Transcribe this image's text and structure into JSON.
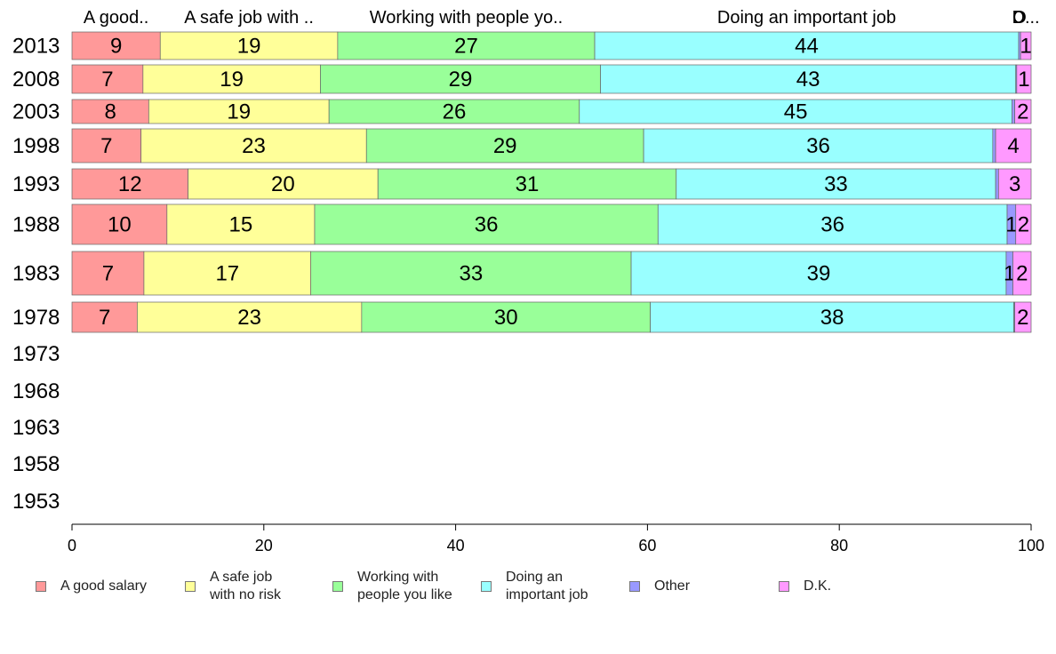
{
  "chart_data": {
    "type": "bar",
    "orientation": "horizontal",
    "stacked": true,
    "title": "",
    "xlabel": "",
    "ylabel": "",
    "xlim": [
      0,
      100
    ],
    "x_ticks": [
      "0",
      "20",
      "40",
      "60",
      "80",
      "100"
    ],
    "grid": false,
    "legend_position": "bottom",
    "top_labels": [
      "A good..",
      "A safe job with ..",
      "Working with people yo..",
      "Doing an important job",
      "O",
      "D..."
    ],
    "categories": [
      "2013",
      "2008",
      "2003",
      "1998",
      "1993",
      "1988",
      "1983",
      "1978",
      "1973",
      "1968",
      "1963",
      "1958",
      "1953"
    ],
    "series": [
      {
        "name": "A good salary",
        "legend_label": "A good salary",
        "color": "#ff9999",
        "values": [
          9.2,
          7.4,
          8,
          7.2,
          12.1,
          9.9,
          7.5,
          6.8,
          null,
          null,
          null,
          null,
          null
        ],
        "labels": [
          "9",
          "7",
          "8",
          "7",
          "12",
          "10",
          "7",
          "7",
          "",
          "",
          "",
          "",
          ""
        ]
      },
      {
        "name": "A safe job with no risk",
        "legend_label": "A safe job\nwith no risk",
        "color": "#ffff99",
        "values": [
          18.5,
          18.5,
          18.8,
          23.5,
          19.8,
          15.4,
          17.4,
          23.4,
          null,
          null,
          null,
          null,
          null
        ],
        "labels": [
          "19",
          "19",
          "19",
          "23",
          "20",
          "15",
          "17",
          "23",
          "",
          "",
          "",
          "",
          ""
        ]
      },
      {
        "name": "Working with people you like",
        "legend_label": "Working with\npeople you like",
        "color": "#99ff99",
        "values": [
          26.8,
          29.2,
          26.1,
          28.9,
          31.1,
          35.8,
          33.4,
          30.1,
          null,
          null,
          null,
          null,
          null
        ],
        "labels": [
          "27",
          "29",
          "26",
          "29",
          "31",
          "36",
          "33",
          "30",
          "",
          "",
          "",
          "",
          ""
        ]
      },
      {
        "name": "Doing an important job",
        "legend_label": "Doing an\nimportant job",
        "color": "#99ffff",
        "values": [
          44.2,
          43.3,
          45.1,
          36.4,
          33.3,
          36.4,
          39.1,
          37.9,
          null,
          null,
          null,
          null,
          null
        ],
        "labels": [
          "44",
          "43",
          "45",
          "36",
          "33",
          "36",
          "39",
          "38",
          "",
          "",
          "",
          "",
          ""
        ]
      },
      {
        "name": "Other",
        "legend_label": "Other",
        "color": "#9999ff",
        "values": [
          0.2,
          0.1,
          0.3,
          0.3,
          0.3,
          0.9,
          0.7,
          0.1,
          null,
          null,
          null,
          null,
          null
        ],
        "labels": [
          "",
          "",
          "",
          "",
          "",
          "1",
          "1",
          "",
          "",
          "",
          "",
          "",
          ""
        ]
      },
      {
        "name": "D.K.",
        "legend_label": "D.K.",
        "color": "#ff99ff",
        "values": [
          1.1,
          1.5,
          1.7,
          3.7,
          3.4,
          1.6,
          1.9,
          1.7,
          null,
          null,
          null,
          null,
          null
        ],
        "labels": [
          "1",
          "1",
          "2",
          "4",
          "3",
          "2",
          "2",
          "2",
          "",
          "",
          "",
          "",
          ""
        ]
      }
    ]
  }
}
